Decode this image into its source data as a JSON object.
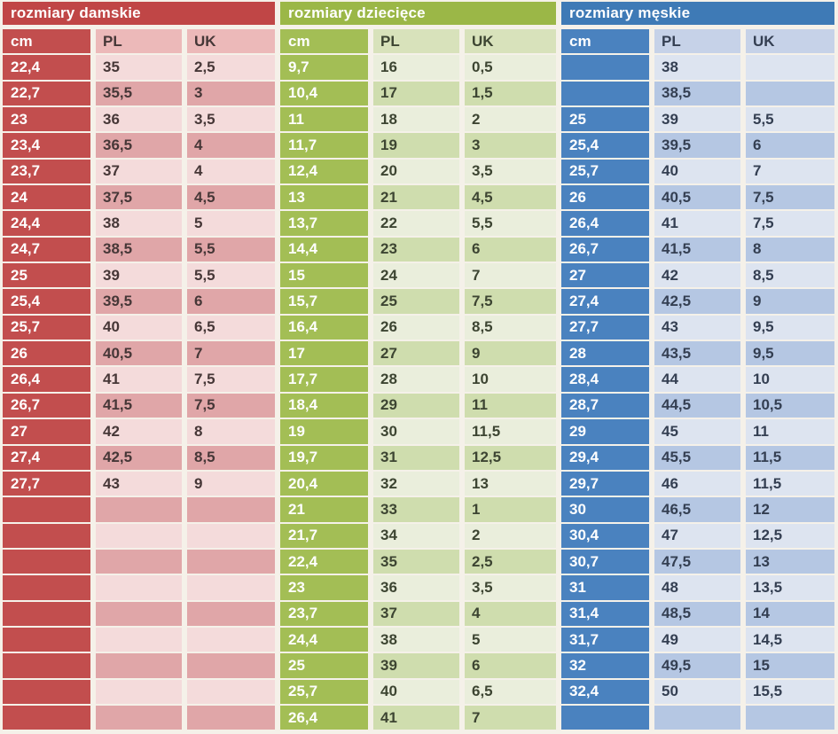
{
  "page": {
    "background": "#f5f1e9",
    "description": "Shoe size conversion chart: centimeters to PL and UK sizes for women, children and men"
  },
  "sections": [
    {
      "id": "women",
      "title": "rozmiary damskie",
      "columns": [
        "cm",
        "PL",
        "UK"
      ],
      "colors": {
        "title_bg": "#c04646",
        "title_text": "#ffffff",
        "cm_bg": "#c24e4e",
        "cm_text": "#ffffff",
        "header_bg": "#ecb9b9",
        "row_light": "#f4dbdb",
        "row_dark": "#e0a6a8",
        "value_text": "#463737"
      },
      "rows": [
        [
          "22,4",
          "35",
          "2,5"
        ],
        [
          "22,7",
          "35,5",
          "3"
        ],
        [
          "23",
          "36",
          "3,5"
        ],
        [
          "23,4",
          "36,5",
          "4"
        ],
        [
          "23,7",
          "37",
          "4"
        ],
        [
          "24",
          "37,5",
          "4,5"
        ],
        [
          "24,4",
          "38",
          "5"
        ],
        [
          "24,7",
          "38,5",
          "5,5"
        ],
        [
          "25",
          "39",
          "5,5"
        ],
        [
          "25,4",
          "39,5",
          "6"
        ],
        [
          "25,7",
          "40",
          "6,5"
        ],
        [
          "26",
          "40,5",
          "7"
        ],
        [
          "26,4",
          "41",
          "7,5"
        ],
        [
          "26,7",
          "41,5",
          "7,5"
        ],
        [
          "27",
          "42",
          "8"
        ],
        [
          "27,4",
          "42,5",
          "8,5"
        ],
        [
          "27,7",
          "43",
          "9"
        ],
        [
          "",
          "",
          ""
        ],
        [
          "",
          "",
          ""
        ],
        [
          "",
          "",
          ""
        ],
        [
          "",
          "",
          ""
        ],
        [
          "",
          "",
          ""
        ],
        [
          "",
          "",
          ""
        ],
        [
          "",
          "",
          ""
        ],
        [
          "",
          "",
          ""
        ],
        [
          "",
          "",
          ""
        ]
      ]
    },
    {
      "id": "children",
      "title": "rozmiary dziecięce",
      "columns": [
        "cm",
        "PL",
        "UK"
      ],
      "colors": {
        "title_bg": "#9bb747",
        "title_text": "#ffffff",
        "cm_bg": "#a3be55",
        "cm_text": "#ffffff",
        "header_bg": "#d8e2bb",
        "row_light": "#eaeedc",
        "row_dark": "#cfddae",
        "value_text": "#3d4532"
      },
      "rows": [
        [
          "9,7",
          "16",
          "0,5"
        ],
        [
          "10,4",
          "17",
          "1,5"
        ],
        [
          "11",
          "18",
          "2"
        ],
        [
          "11,7",
          "19",
          "3"
        ],
        [
          "12,4",
          "20",
          "3,5"
        ],
        [
          "13",
          "21",
          "4,5"
        ],
        [
          "13,7",
          "22",
          "5,5"
        ],
        [
          "14,4",
          "23",
          "6"
        ],
        [
          "15",
          "24",
          "7"
        ],
        [
          "15,7",
          "25",
          "7,5"
        ],
        [
          "16,4",
          "26",
          "8,5"
        ],
        [
          "17",
          "27",
          "9"
        ],
        [
          "17,7",
          "28",
          "10"
        ],
        [
          "18,4",
          "29",
          "11"
        ],
        [
          "19",
          "30",
          "11,5"
        ],
        [
          "19,7",
          "31",
          "12,5"
        ],
        [
          "20,4",
          "32",
          "13"
        ],
        [
          "21",
          "33",
          "1"
        ],
        [
          "21,7",
          "34",
          "2"
        ],
        [
          "22,4",
          "35",
          "2,5"
        ],
        [
          "23",
          "36",
          "3,5"
        ],
        [
          "23,7",
          "37",
          "4"
        ],
        [
          "24,4",
          "38",
          "5"
        ],
        [
          "25",
          "39",
          "6"
        ],
        [
          "25,7",
          "40",
          "6,5"
        ],
        [
          "26,4",
          "41",
          "7"
        ]
      ]
    },
    {
      "id": "men",
      "title": "rozmiary męskie",
      "columns": [
        "cm",
        "PL",
        "UK"
      ],
      "colors": {
        "title_bg": "#3e7ab6",
        "title_text": "#ffffff",
        "cm_bg": "#4a82bf",
        "cm_text": "#ffffff",
        "header_bg": "#c6d2e8",
        "row_light": "#dde4f0",
        "row_dark": "#b5c7e3",
        "value_text": "#343f52"
      },
      "rows": [
        [
          "",
          "38",
          ""
        ],
        [
          "",
          "38,5",
          ""
        ],
        [
          "25",
          "39",
          "5,5"
        ],
        [
          "25,4",
          "39,5",
          "6"
        ],
        [
          "25,7",
          "40",
          "7"
        ],
        [
          "26",
          "40,5",
          "7,5"
        ],
        [
          "26,4",
          "41",
          "7,5"
        ],
        [
          "26,7",
          "41,5",
          "8"
        ],
        [
          "27",
          "42",
          "8,5"
        ],
        [
          "27,4",
          "42,5",
          "9"
        ],
        [
          "27,7",
          "43",
          "9,5"
        ],
        [
          "28",
          "43,5",
          "9,5"
        ],
        [
          "28,4",
          "44",
          "10"
        ],
        [
          "28,7",
          "44,5",
          "10,5"
        ],
        [
          "29",
          "45",
          "11"
        ],
        [
          "29,4",
          "45,5",
          "11,5"
        ],
        [
          "29,7",
          "46",
          "11,5"
        ],
        [
          "30",
          "46,5",
          "12"
        ],
        [
          "30,4",
          "47",
          "12,5"
        ],
        [
          "30,7",
          "47,5",
          "13"
        ],
        [
          "31",
          "48",
          "13,5"
        ],
        [
          "31,4",
          "48,5",
          "14"
        ],
        [
          "31,7",
          "49",
          "14,5"
        ],
        [
          "32",
          "49,5",
          "15"
        ],
        [
          "32,4",
          "50",
          "15,5"
        ],
        [
          "",
          "",
          ""
        ]
      ]
    }
  ]
}
